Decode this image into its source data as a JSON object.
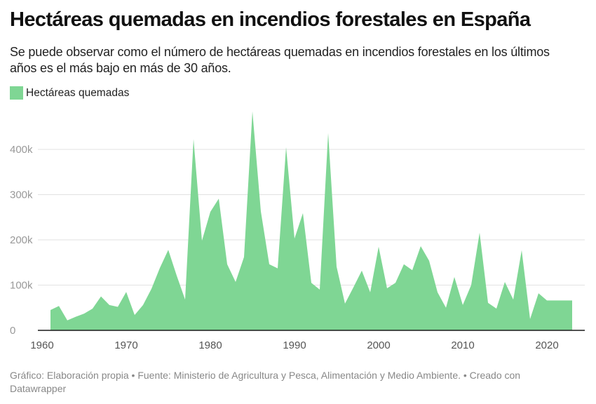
{
  "header": {
    "title": "Hectáreas quemadas en incendios forestales en España",
    "subtitle": "Se puede observar como el número de hectáreas quemadas en incendios forestales en los últimos años es el más bajo en más de 30 años."
  },
  "legend": {
    "items": [
      {
        "label": "Hectáreas quemadas",
        "color": "#7fd694"
      }
    ]
  },
  "footer": {
    "text": "Gráfico: Elaboración propia • Fuente: Ministerio de Agricultura y Pesca, Alimentación y Medio Ambiente. • Creado con Datawrapper"
  },
  "colors": {
    "area": "#7fd694",
    "grid": "#e2e2e2",
    "axis": "#1a1a1a",
    "tick_label": "#999999",
    "x_tick_label": "#555555"
  },
  "chart_data": {
    "type": "area",
    "title": "Hectáreas quemadas en incendios forestales en España",
    "xlabel": "",
    "ylabel": "",
    "xlim": [
      1960,
      2024
    ],
    "ylim": [
      0,
      490000
    ],
    "grid": true,
    "legend_position": "top-left",
    "x_ticks": [
      {
        "value": 1960,
        "label": "1960"
      },
      {
        "value": 1970,
        "label": "1970"
      },
      {
        "value": 1980,
        "label": "1980"
      },
      {
        "value": 1990,
        "label": "1990"
      },
      {
        "value": 2000,
        "label": "2000"
      },
      {
        "value": 2010,
        "label": "2010"
      },
      {
        "value": 2020,
        "label": "2020"
      }
    ],
    "y_ticks": [
      {
        "value": 0,
        "label": "0"
      },
      {
        "value": 100000,
        "label": "100k"
      },
      {
        "value": 200000,
        "label": "200k"
      },
      {
        "value": 300000,
        "label": "300k"
      },
      {
        "value": 400000,
        "label": "400k"
      }
    ],
    "series": [
      {
        "name": "Hectáreas quemadas",
        "x": [
          1961,
          1962,
          1963,
          1964,
          1965,
          1966,
          1967,
          1968,
          1969,
          1970,
          1971,
          1972,
          1973,
          1974,
          1975,
          1976,
          1977,
          1978,
          1979,
          1980,
          1981,
          1982,
          1983,
          1984,
          1985,
          1986,
          1987,
          1988,
          1989,
          1990,
          1991,
          1992,
          1993,
          1994,
          1995,
          1996,
          1997,
          1998,
          1999,
          2000,
          2001,
          2002,
          2003,
          2004,
          2005,
          2006,
          2007,
          2008,
          2009,
          2010,
          2011,
          2012,
          2013,
          2014,
          2015,
          2016,
          2017,
          2018,
          2019,
          2020,
          2021,
          2022,
          2023
        ],
        "values": [
          45000,
          54000,
          22000,
          30000,
          37000,
          48000,
          75000,
          56000,
          52000,
          85000,
          34000,
          56000,
          92000,
          138000,
          178000,
          121000,
          68000,
          423000,
          198000,
          262000,
          291000,
          146000,
          107000,
          162000,
          484000,
          263000,
          146000,
          137000,
          405000,
          203000,
          259000,
          105000,
          90000,
          436000,
          141000,
          59000,
          95000,
          132000,
          84000,
          185000,
          93000,
          105000,
          146000,
          133000,
          186000,
          154000,
          84000,
          50000,
          118000,
          56000,
          100000,
          216000,
          61000,
          48000,
          107000,
          68000,
          177000,
          25000,
          82000,
          66000,
          66000,
          66000,
          66000
        ]
      }
    ]
  }
}
